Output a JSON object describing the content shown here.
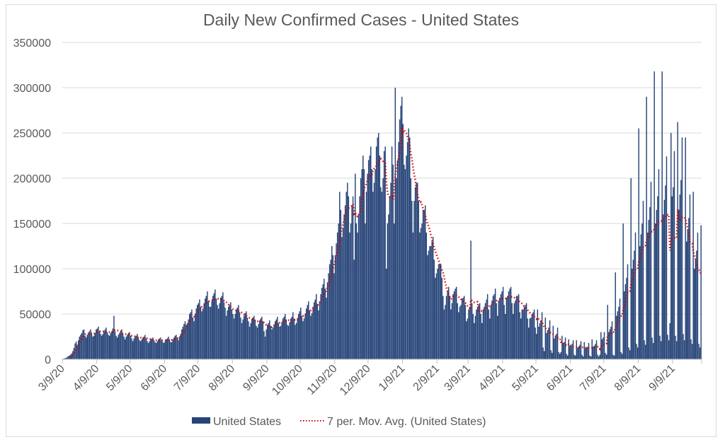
{
  "chart_data": {
    "type": "bar",
    "title": "Daily New Confirmed Cases - United States",
    "xlabel": "",
    "ylabel": "",
    "ylim": [
      0,
      350000
    ],
    "ytick_step": 50000,
    "yticks": [
      "0",
      "50000",
      "100000",
      "150000",
      "200000",
      "250000",
      "300000",
      "350000"
    ],
    "xtick_labels": [
      "3/9/20",
      "4/9/20",
      "5/9/20",
      "6/9/20",
      "7/9/20",
      "8/9/20",
      "9/9/20",
      "10/9/20",
      "11/9/20",
      "12/9/20",
      "1/9/21",
      "2/9/21",
      "3/9/21",
      "4/9/21",
      "5/9/21",
      "6/9/21",
      "7/9/21",
      "8/9/21",
      "9/9/21"
    ],
    "grid": "horizontal",
    "legend_position": "bottom",
    "series": [
      {
        "name": "United States",
        "kind": "bar",
        "color": "#264478",
        "values": [
          500,
          800,
          1100,
          1600,
          2600,
          3400,
          4200,
          5000,
          6500,
          9000,
          12500,
          17500,
          19500,
          16000,
          21000,
          25000,
          27000,
          29000,
          32000,
          33000,
          26000,
          24000,
          27000,
          29000,
          31000,
          33000,
          28000,
          25000,
          26000,
          29000,
          33000,
          34000,
          36000,
          31000,
          28000,
          26000,
          28000,
          31000,
          33000,
          35000,
          30000,
          27000,
          26000,
          29000,
          31000,
          34000,
          48000,
          31000,
          26000,
          24000,
          27000,
          29000,
          31000,
          33000,
          28000,
          25000,
          22000,
          25000,
          27000,
          29000,
          30000,
          26000,
          23000,
          20000,
          23000,
          25000,
          26000,
          28000,
          24000,
          21000,
          20000,
          22000,
          24000,
          25000,
          27000,
          23000,
          20000,
          18000,
          20000,
          22000,
          23000,
          24000,
          21000,
          19000,
          18000,
          20000,
          22000,
          23000,
          24000,
          21000,
          19000,
          18000,
          20000,
          22000,
          23000,
          25000,
          22000,
          19000,
          19000,
          22000,
          24000,
          26000,
          27000,
          24000,
          21000,
          25000,
          28000,
          33000,
          36000,
          39000,
          42000,
          38000,
          40000,
          44000,
          50000,
          52000,
          55000,
          46000,
          42000,
          50000,
          56000,
          60000,
          62000,
          66000,
          58000,
          53000,
          56000,
          62000,
          67000,
          70000,
          75000,
          64000,
          58000,
          58000,
          64000,
          70000,
          73000,
          77000,
          67000,
          60000,
          56000,
          62000,
          68000,
          70000,
          74000,
          63000,
          57000,
          48000,
          54000,
          58000,
          60000,
          63000,
          55000,
          50000,
          45000,
          50000,
          55000,
          57000,
          60000,
          52000,
          46000,
          40000,
          44000,
          48000,
          51000,
          53000,
          46000,
          42000,
          36000,
          40000,
          44000,
          46000,
          48000,
          43000,
          37000,
          35000,
          39000,
          43000,
          45000,
          47000,
          42000,
          31000,
          25000,
          33000,
          38000,
          40000,
          43000,
          37000,
          33000,
          35000,
          38000,
          42000,
          44000,
          47000,
          40000,
          36000,
          37000,
          41000,
          45000,
          47000,
          50000,
          44000,
          38000,
          37000,
          41000,
          45000,
          47000,
          52000,
          45000,
          38000,
          40000,
          45000,
          50000,
          53000,
          57000,
          48000,
          42000,
          45000,
          50000,
          56000,
          60000,
          64000,
          54000,
          48000,
          51000,
          58000,
          63000,
          66000,
          72000,
          61000,
          54000,
          64000,
          72000,
          79000,
          83000,
          89000,
          78000,
          68000,
          85000,
          95000,
          105000,
          110000,
          125000,
          115000,
          95000,
          115000,
          128000,
          140000,
          150000,
          185000,
          165000,
          135000,
          145000,
          160000,
          170000,
          185000,
          195000,
          180000,
          140000,
          150000,
          170000,
          180000,
          110000,
          205000,
          150000,
          140000,
          160000,
          180000,
          200000,
          210000,
          225000,
          210000,
          150000,
          185000,
          205000,
          220000,
          225000,
          235000,
          210000,
          185000,
          195000,
          210000,
          235000,
          245000,
          250000,
          225000,
          190000,
          185000,
          200000,
          230000,
          235000,
          100000,
          150000,
          160000,
          180000,
          195000,
          235000,
          215000,
          150000,
          300000,
          200000,
          220000,
          240000,
          265000,
          280000,
          290000,
          260000,
          215000,
          210000,
          225000,
          240000,
          255000,
          245000,
          200000,
          175000,
          140000,
          175000,
          190000,
          195000,
          195000,
          175000,
          140000,
          145000,
          150000,
          165000,
          165000,
          170000,
          140000,
          115000,
          120000,
          125000,
          125000,
          130000,
          135000,
          110000,
          90000,
          95000,
          100000,
          105000,
          105000,
          105000,
          90000,
          70000,
          55000,
          60000,
          70000,
          75000,
          80000,
          70000,
          55000,
          62000,
          72000,
          75000,
          78000,
          80000,
          62000,
          52000,
          58000,
          60000,
          67000,
          68000,
          70000,
          60000,
          42000,
          45000,
          55000,
          58000,
          131000,
          62000,
          50000,
          40000,
          48000,
          55000,
          58000,
          60000,
          62000,
          50000,
          40000,
          55000,
          58000,
          62000,
          66000,
          72000,
          55000,
          45000,
          60000,
          65000,
          70000,
          72000,
          78000,
          62000,
          48000,
          65000,
          68000,
          72000,
          75000,
          80000,
          60000,
          50000,
          68000,
          70000,
          75000,
          78000,
          80000,
          62000,
          50000,
          62000,
          65000,
          70000,
          70000,
          72000,
          52000,
          45000,
          55000,
          55000,
          58000,
          60000,
          62000,
          45000,
          35000,
          45000,
          46000,
          50000,
          52000,
          55000,
          35000,
          28000,
          55000,
          36000,
          40000,
          43000,
          52000,
          13000,
          9000,
          46000,
          29000,
          32000,
          35000,
          43000,
          10000,
          7000,
          37000,
          23000,
          25000,
          28000,
          35000,
          8000,
          6000,
          8000,
          26000,
          18000,
          19000,
          24000,
          6000,
          4000,
          22000,
          14000,
          15000,
          17000,
          21000,
          5000,
          4000,
          21000,
          13000,
          14000,
          16000,
          20000,
          5000,
          3000,
          19000,
          12000,
          13000,
          14000,
          18000,
          4000,
          3000,
          22000,
          14000,
          15000,
          17000,
          21000,
          5000,
          3000,
          5000,
          30000,
          22000,
          24000,
          30000,
          7000,
          5000,
          60000,
          30000,
          33000,
          36000,
          42000,
          5000,
          4000,
          96000,
          48000,
          53000,
          58000,
          67000,
          8000,
          6000,
          150000,
          75000,
          83000,
          90000,
          105000,
          13000,
          10000,
          200000,
          100000,
          110000,
          120000,
          140000,
          17000,
          13000,
          255000,
          125000,
          138000,
          150000,
          175000,
          21000,
          16000,
          290000,
          140000,
          154000,
          168000,
          196000,
          24000,
          18000,
          318000,
          150000,
          165000,
          180000,
          210000,
          26000,
          20000,
          318000,
          160000,
          176000,
          192000,
          224000,
          27000,
          21000,
          40000,
          250000,
          180000,
          190000,
          230000,
          26000,
          20000,
          262000,
          165000,
          182000,
          198000,
          245000,
          28000,
          21000,
          245000,
          130000,
          143000,
          156000,
          182000,
          22000,
          17000,
          185000,
          100000,
          110000,
          120000,
          140000,
          17000,
          13000,
          148000
        ]
      },
      {
        "name": "7 per. Mov. Avg. (United States)",
        "kind": "trendline",
        "trendline": "moving_average",
        "period": 7,
        "color": "#d00000",
        "style": "dotted"
      }
    ]
  }
}
